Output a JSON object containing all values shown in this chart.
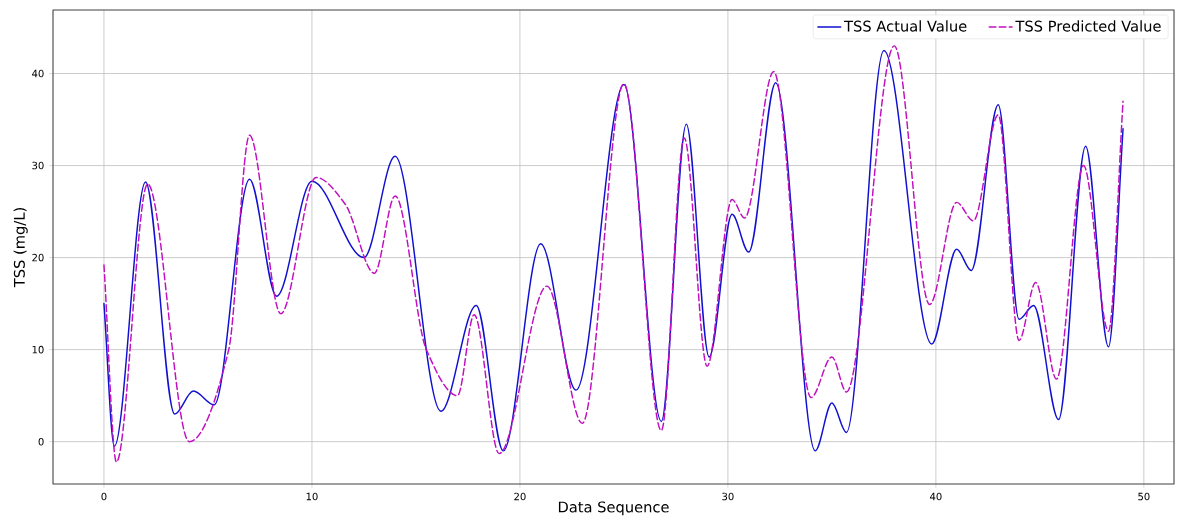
{
  "chart_data": {
    "type": "line",
    "xlabel": "Data Sequence",
    "ylabel": "TSS (mg/L)",
    "xlim": [
      -2.45,
      51.45
    ],
    "ylim": [
      -4.6,
      46.9
    ],
    "xticks": [
      0,
      10,
      20,
      30,
      40,
      50
    ],
    "yticks": [
      0,
      10,
      20,
      30,
      40
    ],
    "grid": true,
    "legend": "top right",
    "series": [
      {
        "name": "TSS Actual Value",
        "color": "#1010d0",
        "line_style": "solid",
        "x": [
          0,
          0.5,
          2,
          3.4,
          4.3,
          5.3,
          7,
          8.3,
          10,
          12.5,
          14,
          16.2,
          17.9,
          19.2,
          21,
          22.7,
          25,
          26.8,
          28,
          29.1,
          30.2,
          31,
          32.3,
          34.2,
          35,
          35.7,
          37.5,
          39.8,
          41,
          41.7,
          43,
          44,
          44.7,
          45.9,
          47.2,
          48.3,
          49
        ],
        "values": [
          15,
          -0.5,
          28.2,
          3,
          5.5,
          4,
          28.5,
          15.8,
          28.3,
          20,
          31,
          3.3,
          14.8,
          -1,
          21.5,
          5.6,
          38.8,
          2.2,
          34.5,
          9.2,
          24.7,
          20.6,
          39,
          -1,
          4.2,
          1,
          42.5,
          10.6,
          20.9,
          18.6,
          36.6,
          13.3,
          14.8,
          2.4,
          32.1,
          10.3,
          34
        ]
      },
      {
        "name": "TSS Predicted Value",
        "color": "#c010c0",
        "line_style": "dashed",
        "x": [
          0,
          0.6,
          2.1,
          4.1,
          6,
          7,
          8.5,
          10.2,
          11.6,
          13,
          14,
          15.5,
          17,
          17.8,
          19,
          21.3,
          23,
          25,
          26.8,
          27.9,
          29,
          30.2,
          30.8,
          32.2,
          34,
          35,
          35.7,
          38,
          39.7,
          41,
          41.8,
          43,
          44,
          44.8,
          45.8,
          47.1,
          48.3,
          49
        ],
        "values": [
          19.2,
          -2.2,
          28,
          0,
          10,
          33.3,
          13.9,
          28.7,
          25.8,
          18.3,
          26.7,
          10,
          5,
          13.8,
          -1.3,
          16.9,
          2,
          38.9,
          1.2,
          33,
          8.2,
          26.3,
          24.3,
          40.2,
          4.8,
          9.2,
          5.4,
          43,
          14.9,
          26,
          24,
          35.5,
          11,
          17.3,
          6.8,
          30,
          12,
          37
        ]
      }
    ]
  }
}
